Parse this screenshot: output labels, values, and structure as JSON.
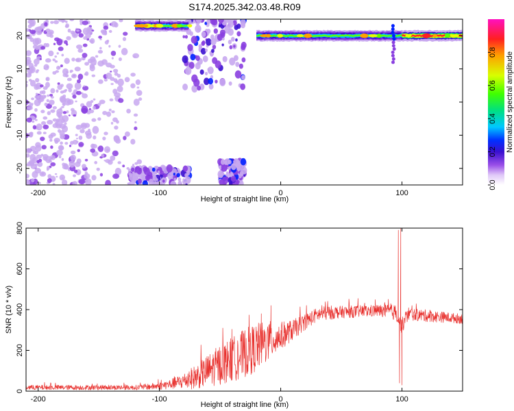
{
  "title": "S174.2025.342.03.48.R09",
  "colors": {
    "snr_line": "#e8312e",
    "spec_scale": [
      "#ffffff",
      "#c8a8f0",
      "#8a3fe0",
      "#3a10d0",
      "#0020ff",
      "#00c8ff",
      "#00e070",
      "#60ff00",
      "#e8ff00",
      "#ffa000",
      "#ff2020",
      "#ff10c0"
    ]
  },
  "chart_data": [
    {
      "type": "heatmap",
      "name": "spectrogram",
      "xlabel": "Height of straight line (km)",
      "ylabel": "Frequency (Hz)",
      "xlim": [
        -210,
        150
      ],
      "ylim": [
        -25,
        25
      ],
      "x_ticks": [
        "-200",
        "-100",
        "0",
        "100"
      ],
      "y_ticks": [
        "20",
        "10",
        "0",
        "-10",
        "-20"
      ],
      "colorbar": {
        "label": "Normalized spectral amplitude",
        "range": [
          0,
          1
        ],
        "ticks": [
          "0.0",
          "0.2",
          "0.4",
          "0.6",
          "0.8"
        ]
      },
      "features": [
        {
          "kind": "noise-cloud",
          "x_range": [
            -210,
            -115
          ],
          "y_range": [
            -25,
            25
          ],
          "level": 0.2
        },
        {
          "kind": "blob-cluster",
          "x_range": [
            -80,
            -30
          ],
          "y_range": [
            4,
            25
          ],
          "level": 0.25
        },
        {
          "kind": "blob-cluster",
          "x_range": [
            -125,
            -75
          ],
          "y_range": [
            -25,
            -20
          ],
          "level": 0.3
        },
        {
          "kind": "blob-cluster",
          "x_range": [
            -50,
            -30
          ],
          "y_range": [
            -25,
            -18
          ],
          "level": 0.3
        },
        {
          "kind": "tone",
          "x_range": [
            -120,
            -75
          ],
          "y": 23,
          "level": 0.5
        },
        {
          "kind": "tone",
          "x_range": [
            -20,
            150
          ],
          "y": 20,
          "level": 0.45
        },
        {
          "kind": "tone-peak",
          "x_range": [
            100,
            150
          ],
          "y": 20,
          "level": 0.9
        },
        {
          "kind": "spike",
          "x": 93,
          "y_range": [
            12,
            23
          ],
          "level": 0.3
        }
      ]
    },
    {
      "type": "line",
      "name": "snr",
      "xlabel": "Height of straight line (km)",
      "ylabel": "SNR (10 * v/v)",
      "xlim": [
        -210,
        150
      ],
      "ylim": [
        0,
        800
      ],
      "x_ticks": [
        "-200",
        "-100",
        "0",
        "100"
      ],
      "y_ticks": [
        "0",
        "200",
        "400",
        "600",
        "800"
      ],
      "series": [
        {
          "envelope": {
            "x": [
              -210,
              -120,
              -100,
              -90,
              -80,
              -70,
              -60,
              -50,
              -40,
              -30,
              -20,
              -10,
              0,
              10,
              20,
              30,
              40,
              50,
              60,
              70,
              80,
              90,
              95,
              100,
              105,
              110,
              120,
              130,
              140,
              150
            ],
            "y": [
              18,
              18,
              25,
              35,
              50,
              70,
              100,
              130,
              155,
              185,
              215,
              245,
              270,
              300,
              340,
              375,
              385,
              388,
              390,
              392,
              395,
              390,
              385,
              320,
              380,
              375,
              370,
              365,
              360,
              355
            ],
            "amp": [
              12,
              12,
              18,
              25,
              40,
              60,
              80,
              100,
              110,
              120,
              120,
              100,
              70,
              50,
              40,
              35,
              35,
              30,
              30,
              30,
              30,
              35,
              40,
              40,
              35,
              30,
              30,
              28,
              25,
              25
            ]
          },
          "spikes": [
            {
              "x": -16,
              "y": 380
            },
            {
              "x": -8,
              "y": 420
            },
            {
              "x": 97,
              "y": 790
            },
            {
              "x": 98,
              "y": 40
            },
            {
              "x": 99,
              "y": 800
            },
            {
              "x": 100,
              "y": 30
            }
          ]
        }
      ]
    }
  ]
}
